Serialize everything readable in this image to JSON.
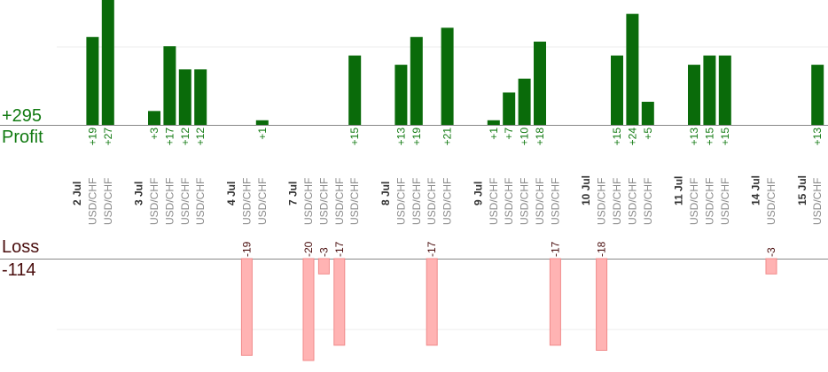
{
  "chart_data": {
    "type": "bar",
    "profit": {
      "label": "Profit",
      "total": "+295",
      "color": "#0a6b0a",
      "label_color": "#117a11",
      "ylim": [
        0,
        27
      ]
    },
    "loss": {
      "label": "Loss",
      "total": "-114",
      "color": "#ffb3b3",
      "label_color": "#4a0e0e",
      "ylim": [
        0,
        20
      ]
    },
    "symbol": "USD/CHF",
    "days": [
      {
        "label": "2 Jul",
        "trades": [
          19,
          27
        ]
      },
      {
        "label": "3 Jul",
        "trades": [
          3,
          17,
          12,
          12
        ]
      },
      {
        "label": "4 Jul",
        "trades": [
          -19,
          1
        ]
      },
      {
        "label": "7 Jul",
        "trades": [
          -20,
          -3,
          -17,
          15
        ]
      },
      {
        "label": "8 Jul",
        "trades": [
          13,
          19,
          -17,
          21
        ]
      },
      {
        "label": "9 Jul",
        "trades": [
          1,
          7,
          10,
          18,
          -17
        ]
      },
      {
        "label": "10 Jul",
        "trades": [
          -18,
          15,
          24,
          5
        ]
      },
      {
        "label": "11 Jul",
        "trades": [
          13,
          15,
          15
        ]
      },
      {
        "label": "14 Jul",
        "trades": [
          -3
        ]
      },
      {
        "label": "15 Jul",
        "trades": [
          13
        ]
      }
    ]
  }
}
